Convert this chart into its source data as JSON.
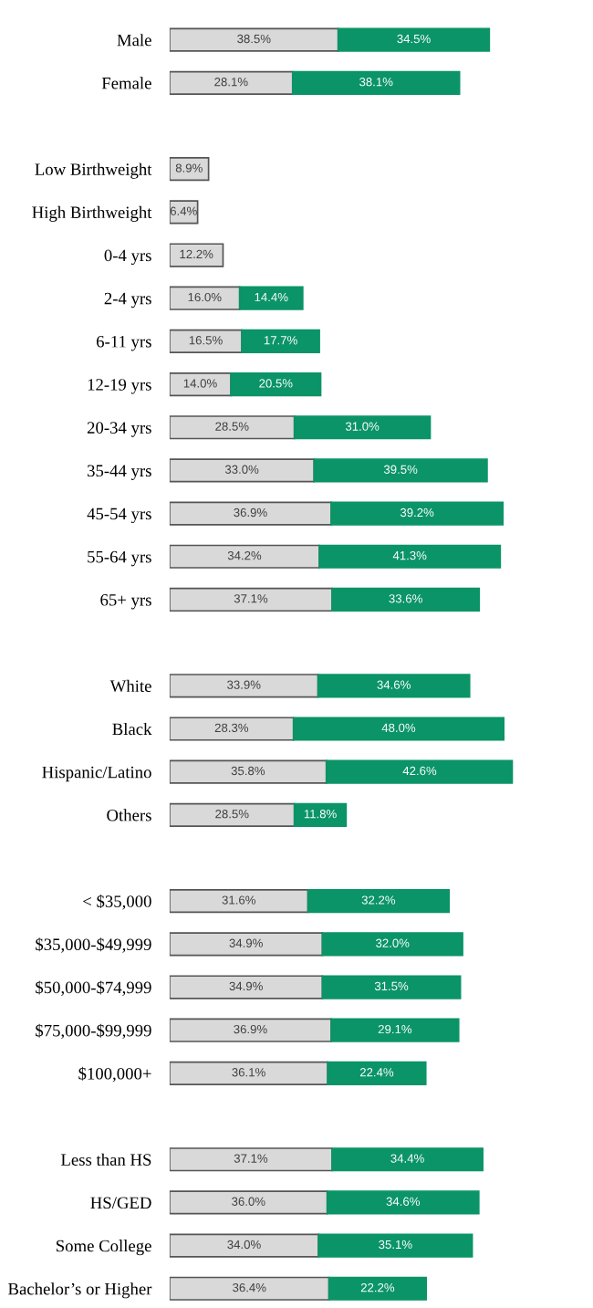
{
  "chart_data": {
    "type": "bar",
    "orientation": "horizontal",
    "stacked": true,
    "categories": [
      "Male",
      "Female",
      null,
      "Low Birthweight",
      "High Birthweight",
      "0-4 yrs",
      "2-4 yrs",
      "6-11 yrs",
      "12-19 yrs",
      "20-34 yrs",
      "35-44 yrs",
      "45-54 yrs",
      "55-64 yrs",
      "65+ yrs",
      null,
      "White",
      "Black",
      "Hispanic/Latino",
      "Others",
      null,
      "< $35,000",
      "$35,000-$49,999",
      "$50,000-$74,999",
      "$75,000-$99,999",
      "$100,000+",
      null,
      "Less than HS",
      "HS/GED",
      "Some College",
      "Bachelor’s or Higher"
    ],
    "series": [
      {
        "color": "#d9d9d9",
        "values": [
          38.5,
          28.1,
          null,
          8.9,
          6.4,
          12.2,
          16.0,
          16.5,
          14.0,
          28.5,
          33.0,
          36.9,
          34.2,
          37.1,
          null,
          33.9,
          28.3,
          35.8,
          28.5,
          null,
          31.6,
          34.9,
          34.9,
          36.9,
          36.1,
          null,
          37.1,
          36.0,
          34.0,
          36.4
        ],
        "value_labels": [
          "38.5%",
          "28.1%",
          null,
          "8.9%",
          "6.4%",
          "12.2%",
          "16.0%",
          "16.5%",
          "14.0%",
          "28.5%",
          "33.0%",
          "36.9%",
          "34.2%",
          "37.1%",
          null,
          "33.9%",
          "28.3%",
          "35.8%",
          "28.5%",
          null,
          "31.6%",
          "34.9%",
          "34.9%",
          "36.9%",
          "36.1%",
          null,
          "37.1%",
          "36.0%",
          "34.0%",
          "36.4%"
        ]
      },
      {
        "color": "#0b9467",
        "values": [
          34.5,
          38.1,
          null,
          null,
          null,
          null,
          14.4,
          17.7,
          20.5,
          31.0,
          39.5,
          39.2,
          41.3,
          33.6,
          null,
          34.6,
          48.0,
          42.6,
          11.8,
          null,
          32.2,
          32.0,
          31.5,
          29.1,
          22.4,
          null,
          34.4,
          34.6,
          35.1,
          22.2
        ],
        "value_labels": [
          "34.5%",
          "38.1%",
          null,
          null,
          null,
          null,
          "14.4%",
          "17.7%",
          "20.5%",
          "31.0%",
          "39.5%",
          "39.2%",
          "41.3%",
          "33.6%",
          null,
          "34.6%",
          "48.0%",
          "42.6%",
          "11.8%",
          null,
          "32.2%",
          "32.0%",
          "31.5%",
          "29.1%",
          "22.4%",
          null,
          "34.4%",
          "34.6%",
          "35.1%",
          "22.2%"
        ]
      }
    ]
  }
}
